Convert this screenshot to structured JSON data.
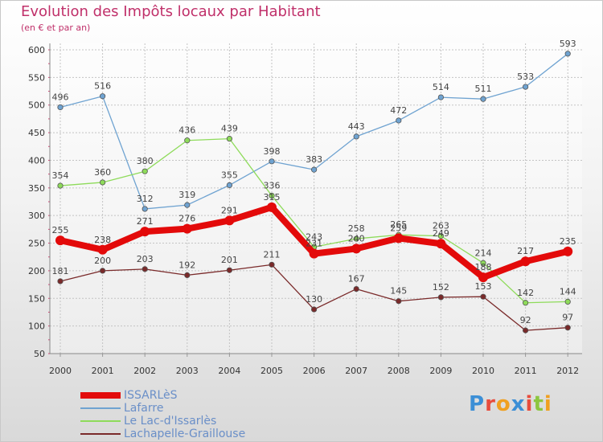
{
  "title": "Evolution des Impôts locaux par Habitant",
  "subtitle": "(en € et par an)",
  "logo": {
    "text": "Proxiti",
    "colors": [
      "#3c8fd6",
      "#e84c3d",
      "#f0a020",
      "#3c8fd6",
      "#e84c3d",
      "#8cc63f",
      "#f0a020"
    ]
  },
  "chart_data": {
    "type": "line",
    "x": [
      "2000",
      "2001",
      "2002",
      "2003",
      "2004",
      "2005",
      "2006",
      "2007",
      "2008",
      "2009",
      "2010",
      "2011",
      "2012"
    ],
    "ylim": [
      50,
      600
    ],
    "yticks": [
      "50",
      "100",
      "150",
      "200",
      "250",
      "300",
      "350",
      "400",
      "450",
      "500",
      "550",
      "600"
    ],
    "grid": true,
    "legend_position": "bottom-left",
    "series": [
      {
        "name": "ISSARLèS",
        "color": "#e30a0a",
        "width": "thick",
        "values": [
          255,
          238,
          271,
          276,
          291,
          315,
          231,
          240,
          259,
          249,
          188,
          217,
          235
        ]
      },
      {
        "name": "Lafarre",
        "color": "#6fa3d1",
        "width": "thin",
        "values": [
          496,
          516,
          312,
          319,
          355,
          398,
          383,
          443,
          472,
          514,
          511,
          533,
          593
        ]
      },
      {
        "name": "Le Lac-d'Issarlès",
        "color": "#8edb5a",
        "width": "thin",
        "values": [
          354,
          360,
          380,
          436,
          439,
          336,
          243,
          258,
          265,
          263,
          214,
          142,
          144
        ]
      },
      {
        "name": "Lachapelle-Graillouse",
        "color": "#7a2a2a",
        "width": "thin",
        "values": [
          181,
          200,
          203,
          192,
          201,
          211,
          130,
          167,
          145,
          152,
          153,
          92,
          97
        ]
      }
    ]
  }
}
